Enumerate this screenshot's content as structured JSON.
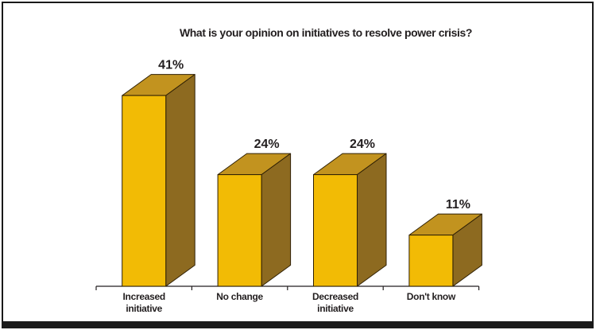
{
  "frame": {
    "border_color": "#1a1a1a",
    "background": "#ffffff"
  },
  "chart_data": {
    "type": "bar",
    "style": "3d-column",
    "title": "What is your opinion on initiatives to resolve power crisis?",
    "categories": [
      "Increased initiative",
      "No change",
      "Decreased initiative",
      "Don't know"
    ],
    "category_lines": [
      [
        "Increased",
        "initiative"
      ],
      [
        "No change"
      ],
      [
        "Decreased",
        "initiative"
      ],
      [
        "Don't know"
      ]
    ],
    "values": [
      41,
      24,
      24,
      11
    ],
    "value_labels": [
      "41%",
      "24%",
      "24%",
      "11%"
    ],
    "unit": "%",
    "xlabel": "",
    "ylabel": "",
    "ylim": [
      0,
      45
    ],
    "grid": "off",
    "legend": "none",
    "colors": {
      "bar_front": "#f2bb05",
      "bar_top": "#c2931f",
      "bar_side": "#8d6a20",
      "bar_outline": "#2e1f04",
      "text": "#231f20",
      "axis": "#231f20"
    }
  }
}
